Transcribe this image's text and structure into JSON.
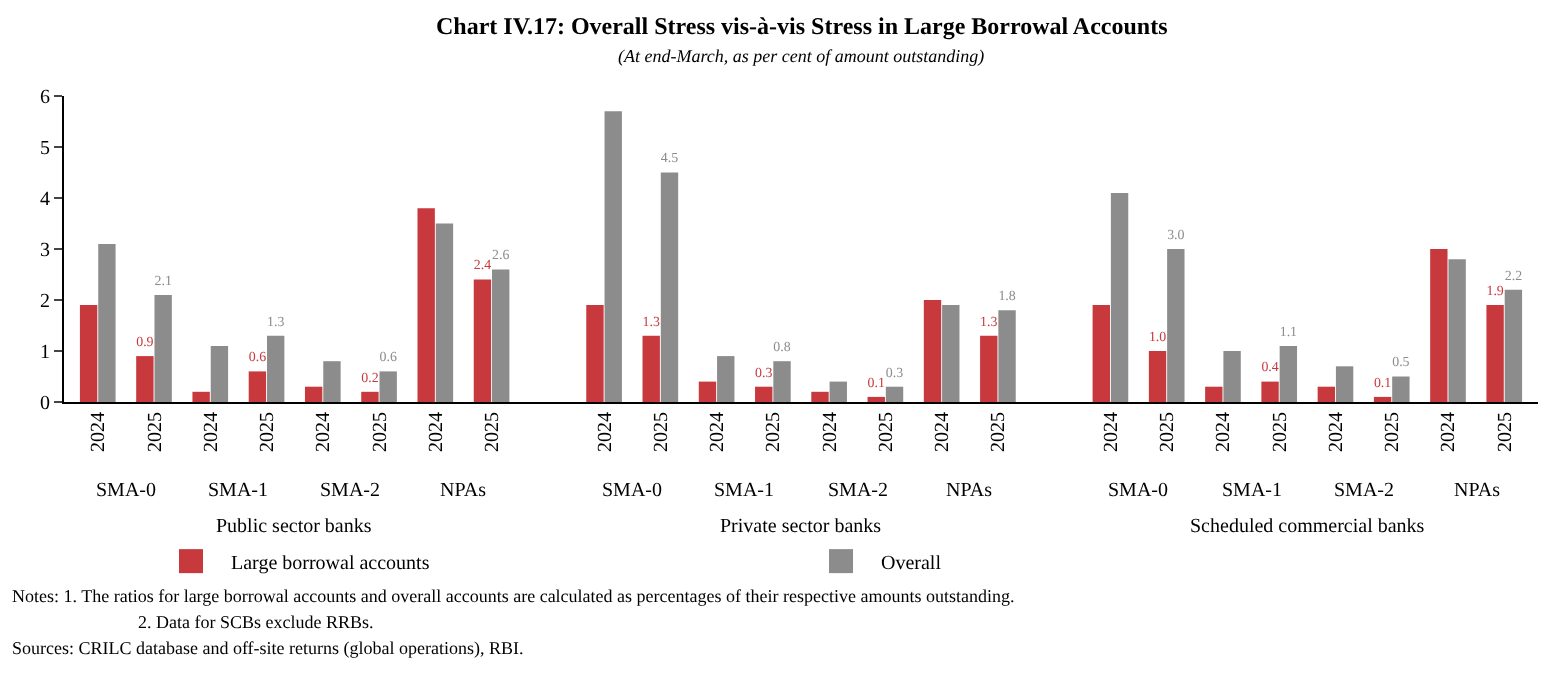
{
  "chart_data": {
    "type": "bar",
    "title": "Chart IV.17: Overall Stress vis-à-vis Stress in Large Borrowal Accounts",
    "subtitle": "(At end-March, as per cent of amount outstanding)",
    "categories": [
      "2024",
      "2025",
      "2024",
      "2025",
      "2024",
      "2025",
      "2024",
      "2025",
      null,
      "2024",
      "2025",
      "2024",
      "2025",
      "2024",
      "2025",
      "2024",
      "2025",
      null,
      "2024",
      "2025",
      "2024",
      "2025",
      "2024",
      "2025",
      "2024",
      "2025"
    ],
    "series": [
      {
        "name": "Large borrowal accounts",
        "color": "#c8393d",
        "values": [
          1.9,
          0.9,
          0.2,
          0.6,
          0.3,
          0.2,
          3.8,
          2.4,
          null,
          1.9,
          1.3,
          0.4,
          0.3,
          0.2,
          0.1,
          2.0,
          1.3,
          null,
          1.9,
          1.0,
          0.3,
          0.4,
          0.3,
          0.1,
          3.0,
          1.9
        ],
        "value_labels": [
          null,
          "0.9",
          null,
          "0.6",
          null,
          "0.2",
          null,
          "2.4",
          null,
          null,
          "1.3",
          null,
          "0.3",
          null,
          "0.1",
          null,
          "1.3",
          null,
          null,
          "1.0",
          null,
          "0.4",
          null,
          "0.1",
          null,
          "1.9"
        ]
      },
      {
        "name": "Overall",
        "color": "#8c8c8c",
        "values": [
          3.1,
          2.1,
          1.1,
          1.3,
          0.8,
          0.6,
          3.5,
          2.6,
          null,
          5.7,
          4.5,
          0.9,
          0.8,
          0.4,
          0.3,
          1.9,
          1.8,
          null,
          4.1,
          3.0,
          1.0,
          1.1,
          0.7,
          0.5,
          2.8,
          2.2
        ],
        "value_labels": [
          null,
          "2.1",
          null,
          "1.3",
          null,
          "0.6",
          null,
          "2.6",
          null,
          null,
          "4.5",
          null,
          "0.8",
          null,
          "0.3",
          null,
          "1.8",
          null,
          null,
          "3.0",
          null,
          "1.1",
          null,
          "0.5",
          null,
          "2.2"
        ]
      }
    ],
    "annotations": [
      "SMA-0",
      "SMA-1",
      "SMA-2",
      "NPAs",
      "SMA-0",
      "SMA-1",
      "SMA-2",
      "NPAs",
      "SMA-0",
      "SMA-1",
      "SMA-2",
      "NPAs",
      "Public sector banks",
      "Private sector banks",
      "Scheduled commercial banks",
      "Notes: 1. The ratios for large borrowal accounts and overall accounts are calculated as percentages of their respective amounts outstanding.",
      "2. Data for SCBs exclude RRBs.",
      "Sources: CRILC database and off-site returns (global operations), RBI."
    ],
    "ylim": [
      0,
      6
    ],
    "yticks": [
      0,
      1,
      2,
      3,
      4,
      5,
      6
    ],
    "grid": false,
    "legend": "bottom"
  }
}
